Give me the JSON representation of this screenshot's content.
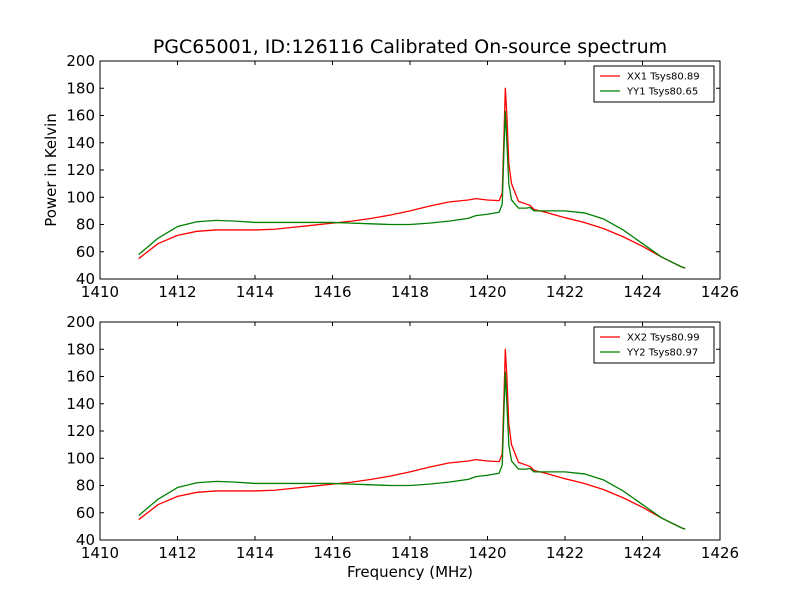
{
  "title": "PGC65001, ID:126116 Calibrated On-source spectrum",
  "ylabel": "Power in Kelvin",
  "xlabel": "Frequency (MHz)",
  "colors": {
    "red": "#ff0000",
    "green": "#008000"
  },
  "chart_data": [
    {
      "type": "line",
      "xlim": [
        1410,
        1426
      ],
      "ylim": [
        40,
        200
      ],
      "xticks": [
        1410,
        1412,
        1414,
        1416,
        1418,
        1420,
        1422,
        1424,
        1426
      ],
      "yticks": [
        40,
        60,
        80,
        100,
        120,
        140,
        160,
        180,
        200
      ],
      "legend_position": "top-right",
      "series": [
        {
          "name": "XX1 Tsys80.89",
          "color": "#ff0000",
          "x": [
            1411.0,
            1411.5,
            1412.0,
            1412.5,
            1413.0,
            1413.5,
            1414.0,
            1414.5,
            1415.0,
            1415.5,
            1416.0,
            1416.5,
            1417.0,
            1417.5,
            1418.0,
            1418.5,
            1419.0,
            1419.5,
            1419.7,
            1420.0,
            1420.3,
            1420.38,
            1420.43,
            1420.46,
            1420.5,
            1420.55,
            1420.62,
            1420.8,
            1421.0,
            1421.1,
            1421.2,
            1421.5,
            1422.0,
            1422.5,
            1423.0,
            1423.5,
            1424.0,
            1424.5,
            1425.0,
            1425.1
          ],
          "values": [
            55,
            66,
            72,
            75,
            76,
            76,
            76,
            76.5,
            78,
            79.5,
            81,
            82.5,
            84.5,
            87,
            90,
            93.5,
            96.5,
            98,
            99,
            98,
            97.5,
            103,
            150,
            180,
            160,
            125,
            110,
            97,
            95,
            94,
            91,
            89,
            85,
            81.5,
            77,
            71,
            64,
            56,
            49,
            48
          ]
        },
        {
          "name": "YY1 Tsys80.65",
          "color": "#008000",
          "x": [
            1411.0,
            1411.5,
            1412.0,
            1412.5,
            1413.0,
            1413.5,
            1414.0,
            1414.5,
            1415.0,
            1415.5,
            1416.0,
            1416.5,
            1417.0,
            1417.5,
            1418.0,
            1418.5,
            1419.0,
            1419.5,
            1419.7,
            1420.0,
            1420.3,
            1420.38,
            1420.43,
            1420.46,
            1420.5,
            1420.55,
            1420.62,
            1420.8,
            1421.0,
            1421.1,
            1421.2,
            1421.5,
            1422.0,
            1422.5,
            1423.0,
            1423.5,
            1424.0,
            1424.5,
            1425.0,
            1425.1
          ],
          "values": [
            58,
            70,
            78.5,
            82,
            83,
            82.5,
            81.5,
            81.5,
            81.5,
            81.5,
            81.5,
            81,
            80.5,
            80,
            80,
            81,
            82.5,
            84.5,
            86.5,
            87.5,
            89,
            95,
            140,
            163,
            140,
            110,
            98,
            92,
            92,
            92.5,
            90,
            90,
            90,
            88.5,
            84,
            76,
            66,
            56,
            49,
            48
          ]
        }
      ]
    },
    {
      "type": "line",
      "xlim": [
        1410,
        1426
      ],
      "ylim": [
        40,
        200
      ],
      "xticks": [
        1410,
        1412,
        1414,
        1416,
        1418,
        1420,
        1422,
        1424,
        1426
      ],
      "yticks": [
        40,
        60,
        80,
        100,
        120,
        140,
        160,
        180,
        200
      ],
      "legend_position": "top-right",
      "series": [
        {
          "name": "XX2 Tsys80.99",
          "color": "#ff0000",
          "x": [
            1411.0,
            1411.5,
            1412.0,
            1412.5,
            1413.0,
            1413.5,
            1414.0,
            1414.5,
            1415.0,
            1415.5,
            1416.0,
            1416.5,
            1417.0,
            1417.5,
            1418.0,
            1418.5,
            1419.0,
            1419.5,
            1419.7,
            1420.0,
            1420.3,
            1420.38,
            1420.43,
            1420.46,
            1420.5,
            1420.55,
            1420.62,
            1420.8,
            1421.0,
            1421.1,
            1421.2,
            1421.5,
            1422.0,
            1422.5,
            1423.0,
            1423.5,
            1424.0,
            1424.5,
            1425.0,
            1425.1
          ],
          "values": [
            55,
            66,
            72,
            75,
            76,
            76,
            76,
            76.5,
            78,
            79.5,
            81,
            82.5,
            84.5,
            87,
            90,
            93.5,
            96.5,
            98,
            99,
            98,
            97.5,
            103,
            150,
            180,
            160,
            125,
            110,
            97,
            95,
            94,
            91,
            89,
            85,
            81.5,
            77,
            71,
            64,
            56,
            49,
            48
          ]
        },
        {
          "name": "YY2 Tsys80.97",
          "color": "#008000",
          "x": [
            1411.0,
            1411.5,
            1412.0,
            1412.5,
            1413.0,
            1413.5,
            1414.0,
            1414.5,
            1415.0,
            1415.5,
            1416.0,
            1416.5,
            1417.0,
            1417.5,
            1418.0,
            1418.5,
            1419.0,
            1419.5,
            1419.7,
            1420.0,
            1420.3,
            1420.38,
            1420.43,
            1420.46,
            1420.5,
            1420.55,
            1420.62,
            1420.8,
            1421.0,
            1421.1,
            1421.2,
            1421.5,
            1422.0,
            1422.5,
            1423.0,
            1423.5,
            1424.0,
            1424.5,
            1425.0,
            1425.1
          ],
          "values": [
            58,
            70,
            78.5,
            82,
            83,
            82.5,
            81.5,
            81.5,
            81.5,
            81.5,
            81.5,
            81,
            80.5,
            80,
            80,
            81,
            82.5,
            84.5,
            86.5,
            87.5,
            89,
            95,
            140,
            163,
            140,
            110,
            98,
            92,
            92,
            92.5,
            90,
            90,
            90,
            88.5,
            84,
            76,
            66,
            56,
            49,
            48
          ]
        }
      ]
    }
  ]
}
